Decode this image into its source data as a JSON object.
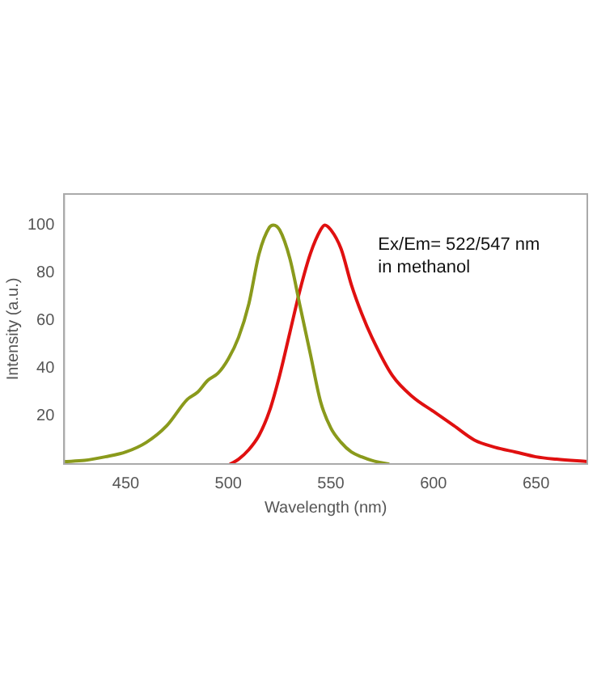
{
  "chart_data": {
    "type": "line",
    "xlabel": "Wavelength (nm)",
    "ylabel": "Intensity (a.u.)",
    "xlim": [
      420,
      675
    ],
    "ylim": [
      0,
      113
    ],
    "xticks": [
      450,
      500,
      550,
      600,
      650
    ],
    "yticks": [
      20,
      40,
      60,
      80,
      100
    ],
    "grid": false,
    "legend": false,
    "marker": "none",
    "line_style": "solid",
    "annotations": [
      "Ex/Em= 522/547 nm\nin methanol"
    ],
    "series": [
      {
        "color": "#8a9a1c",
        "x": [
          420,
          430,
          440,
          450,
          460,
          470,
          480,
          485,
          490,
          495,
          500,
          505,
          510,
          515,
          520,
          522,
          525,
          530,
          535,
          540,
          545,
          550,
          555,
          560,
          565,
          570,
          578
        ],
        "values": [
          1,
          1.5,
          3,
          5,
          9,
          16,
          27,
          30,
          35,
          38,
          44,
          53,
          67,
          88,
          99,
          100,
          98,
          86,
          66,
          46,
          26,
          15,
          9,
          5,
          3,
          1.5,
          0
        ]
      },
      {
        "color": "#e01010",
        "x": [
          501,
          505,
          510,
          515,
          520,
          525,
          530,
          535,
          540,
          545,
          547,
          550,
          555,
          560,
          565,
          570,
          580,
          590,
          600,
          610,
          620,
          630,
          640,
          650,
          660,
          675
        ],
        "values": [
          0,
          2,
          6,
          12,
          22,
          37,
          55,
          73,
          88,
          98,
          100,
          98,
          90,
          75,
          63,
          53,
          37,
          28,
          22,
          16,
          10,
          7,
          5,
          3,
          2,
          1
        ]
      }
    ]
  }
}
